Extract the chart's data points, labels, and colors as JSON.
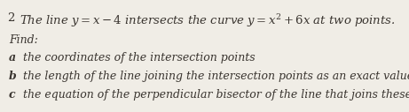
{
  "bg_color": "#f0ede6",
  "text_color": "#3a3530",
  "fig_width": 4.61,
  "fig_height": 1.27,
  "dpi": 100,
  "main_fontsize": 9.5,
  "find_fontsize": 9.0,
  "part_fontsize": 9.0,
  "line1_num": "2",
  "line1_text": "The line $y=x-4$ intersects the curve $y=x^2+6x$ at two points.",
  "find_label": "Find:",
  "part_a_label": "a",
  "part_a_text": "the coordinates of the intersection points",
  "part_b_label": "b",
  "part_b_text": "the length of the line joining the intersection points as an exact value",
  "part_c_label": "c",
  "part_c_text": "the equation of the perpendicular bisector of the line that joins these points."
}
